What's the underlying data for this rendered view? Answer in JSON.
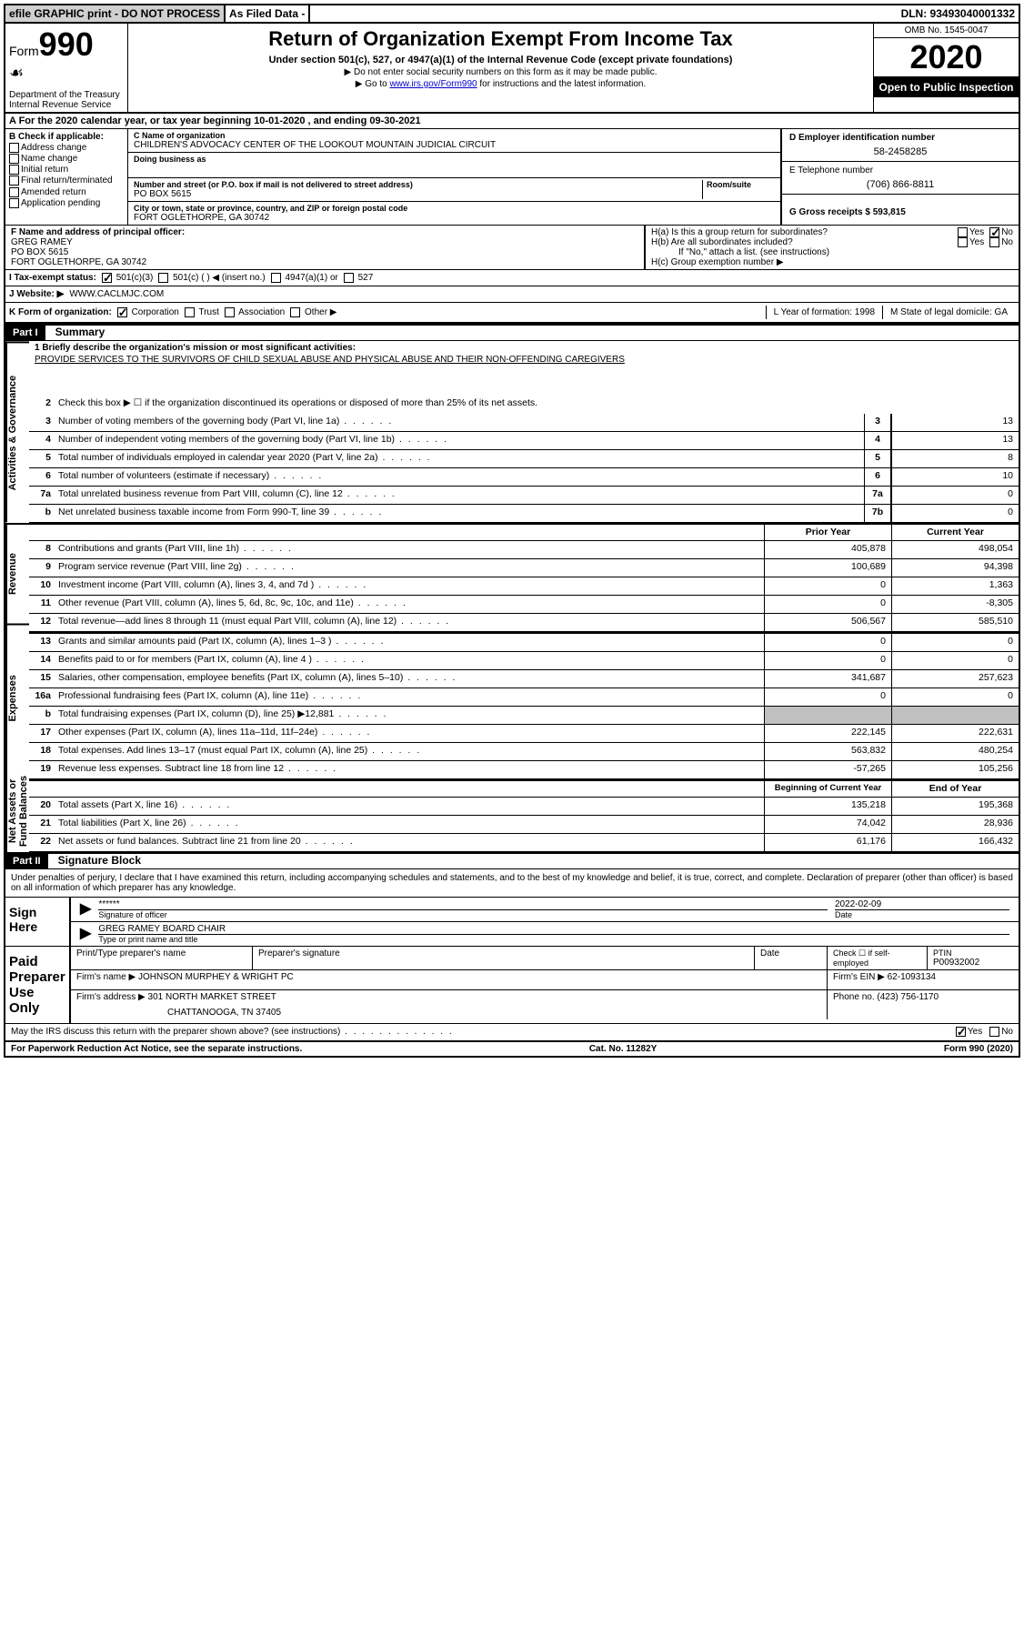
{
  "topbar": {
    "efile": "efile GRAPHIC print - DO NOT PROCESS",
    "asfiled": "As Filed Data -",
    "dln": "DLN: 93493040001332"
  },
  "header": {
    "form_label": "Form",
    "form_num": "990",
    "dept": "Department of the Treasury\nInternal Revenue Service",
    "title": "Return of Organization Exempt From Income Tax",
    "sub": "Under section 501(c), 527, or 4947(a)(1) of the Internal Revenue Code (except private foundations)",
    "note1": "▶ Do not enter social security numbers on this form as it may be made public.",
    "note2_pre": "▶ Go to ",
    "note2_link": "www.irs.gov/Form990",
    "note2_post": " for instructions and the latest information.",
    "omb": "OMB No. 1545-0047",
    "year": "2020",
    "open": "Open to Public Inspection"
  },
  "row_a": "A  For the 2020 calendar year, or tax year beginning 10-01-2020   , and ending 09-30-2021",
  "col_b": {
    "title": "B Check if applicable:",
    "items": [
      "Address change",
      "Name change",
      "Initial return",
      "Final return/terminated",
      "Amended return",
      "Application pending"
    ]
  },
  "col_c": {
    "name_label": "C Name of organization",
    "name": "CHILDREN'S ADVOCACY CENTER OF THE LOOKOUT MOUNTAIN JUDICIAL CIRCUIT",
    "dba_label": "Doing business as",
    "addr_label": "Number and street (or P.O. box if mail is not delivered to street address)",
    "room_label": "Room/suite",
    "addr": "PO BOX 5615",
    "city_label": "City or town, state or province, country, and ZIP or foreign postal code",
    "city": "FORT OGLETHORPE, GA  30742"
  },
  "col_d": {
    "ein_label": "D Employer identification number",
    "ein": "58-2458285",
    "phone_label": "E Telephone number",
    "phone": "(706) 866-8811",
    "gross_label": "G Gross receipts $ 593,815"
  },
  "officer": {
    "f_label": "F  Name and address of principal officer:",
    "name": "GREG RAMEY",
    "addr1": "PO BOX 5615",
    "addr2": "FORT OGLETHORPE, GA  30742",
    "ha": "H(a) Is this a group return for subordinates?",
    "hb": "H(b) Are all subordinates included?",
    "hb_note": "If \"No,\" attach a list. (see instructions)",
    "hc": "H(c) Group exemption number ▶"
  },
  "row_i": {
    "label": "I  Tax-exempt status:",
    "opts": [
      "501(c)(3)",
      "501(c) (  ) ◀ (insert no.)",
      "4947(a)(1) or",
      "527"
    ]
  },
  "row_j": {
    "label": "J  Website: ▶",
    "val": "WWW.CACLMJC.COM"
  },
  "row_k": {
    "label": "K Form of organization:",
    "opts": [
      "Corporation",
      "Trust",
      "Association",
      "Other ▶"
    ],
    "l": "L Year of formation: 1998",
    "m": "M State of legal domicile: GA"
  },
  "part1": {
    "header": "Part I",
    "title": "Summary",
    "mission_label": "1 Briefly describe the organization's mission or most significant activities:",
    "mission": "PROVIDE SERVICES TO THE SURVIVORS OF CHILD SEXUAL ABUSE AND PHYSICAL ABUSE AND THEIR NON-OFFENDING CAREGIVERS",
    "line2": "Check this box ▶ ☐ if the organization discontinued its operations or disposed of more than 25% of its net assets.",
    "tabs": {
      "ag": "Activities & Governance",
      "rev": "Revenue",
      "exp": "Expenses",
      "net": "Net Assets or Fund Balances"
    },
    "rows_ag": [
      {
        "n": "3",
        "t": "Number of voting members of the governing body (Part VI, line 1a)",
        "c": "3",
        "v": "13"
      },
      {
        "n": "4",
        "t": "Number of independent voting members of the governing body (Part VI, line 1b)",
        "c": "4",
        "v": "13"
      },
      {
        "n": "5",
        "t": "Total number of individuals employed in calendar year 2020 (Part V, line 2a)",
        "c": "5",
        "v": "8"
      },
      {
        "n": "6",
        "t": "Total number of volunteers (estimate if necessary)",
        "c": "6",
        "v": "10"
      },
      {
        "n": "7a",
        "t": "Total unrelated business revenue from Part VIII, column (C), line 12",
        "c": "7a",
        "v": "0"
      },
      {
        "n": "b",
        "t": "Net unrelated business taxable income from Form 990-T, line 39",
        "c": "7b",
        "v": "0"
      }
    ],
    "header_py": "Prior Year",
    "header_cy": "Current Year",
    "rows_rev": [
      {
        "n": "8",
        "t": "Contributions and grants (Part VIII, line 1h)",
        "py": "405,878",
        "cy": "498,054"
      },
      {
        "n": "9",
        "t": "Program service revenue (Part VIII, line 2g)",
        "py": "100,689",
        "cy": "94,398"
      },
      {
        "n": "10",
        "t": "Investment income (Part VIII, column (A), lines 3, 4, and 7d )",
        "py": "0",
        "cy": "1,363"
      },
      {
        "n": "11",
        "t": "Other revenue (Part VIII, column (A), lines 5, 6d, 8c, 9c, 10c, and 11e)",
        "py": "0",
        "cy": "-8,305"
      },
      {
        "n": "12",
        "t": "Total revenue—add lines 8 through 11 (must equal Part VIII, column (A), line 12)",
        "py": "506,567",
        "cy": "585,510"
      }
    ],
    "rows_exp": [
      {
        "n": "13",
        "t": "Grants and similar amounts paid (Part IX, column (A), lines 1–3 )",
        "py": "0",
        "cy": "0"
      },
      {
        "n": "14",
        "t": "Benefits paid to or for members (Part IX, column (A), line 4 )",
        "py": "0",
        "cy": "0"
      },
      {
        "n": "15",
        "t": "Salaries, other compensation, employee benefits (Part IX, column (A), lines 5–10)",
        "py": "341,687",
        "cy": "257,623"
      },
      {
        "n": "16a",
        "t": "Professional fundraising fees (Part IX, column (A), line 11e)",
        "py": "0",
        "cy": "0"
      },
      {
        "n": "b",
        "t": "Total fundraising expenses (Part IX, column (D), line 25) ▶12,881",
        "py": "",
        "cy": "",
        "shade": true
      },
      {
        "n": "17",
        "t": "Other expenses (Part IX, column (A), lines 11a–11d, 11f–24e)",
        "py": "222,145",
        "cy": "222,631"
      },
      {
        "n": "18",
        "t": "Total expenses. Add lines 13–17 (must equal Part IX, column (A), line 25)",
        "py": "563,832",
        "cy": "480,254"
      },
      {
        "n": "19",
        "t": "Revenue less expenses. Subtract line 18 from line 12",
        "py": "-57,265",
        "cy": "105,256"
      }
    ],
    "header_bcy": "Beginning of Current Year",
    "header_eoy": "End of Year",
    "rows_net": [
      {
        "n": "20",
        "t": "Total assets (Part X, line 16)",
        "py": "135,218",
        "cy": "195,368"
      },
      {
        "n": "21",
        "t": "Total liabilities (Part X, line 26)",
        "py": "74,042",
        "cy": "28,936"
      },
      {
        "n": "22",
        "t": "Net assets or fund balances. Subtract line 21 from line 20",
        "py": "61,176",
        "cy": "166,432"
      }
    ]
  },
  "part2": {
    "header": "Part II",
    "title": "Signature Block",
    "intro": "Under penalties of perjury, I declare that I have examined this return, including accompanying schedules and statements, and to the best of my knowledge and belief, it is true, correct, and complete. Declaration of preparer (other than officer) is based on all information of which preparer has any knowledge.",
    "sign_here": "Sign Here",
    "sig_stars": "******",
    "sig_officer_label": "Signature of officer",
    "sig_date": "2022-02-09",
    "date_label": "Date",
    "officer_name": "GREG RAMEY BOARD CHAIR",
    "officer_name_label": "Type or print name and title",
    "paid": "Paid Preparer Use Only",
    "prep_name_label": "Print/Type preparer's name",
    "prep_sig_label": "Preparer's signature",
    "check_self": "Check ☐ if self-employed",
    "ptin_label": "PTIN",
    "ptin": "P00932002",
    "firm_name_label": "Firm's name    ▶",
    "firm_name": "JOHNSON MURPHEY & WRIGHT PC",
    "firm_ein_label": "Firm's EIN ▶",
    "firm_ein": "62-1093134",
    "firm_addr_label": "Firm's address ▶",
    "firm_addr1": "301 NORTH MARKET STREET",
    "firm_addr2": "CHATTANOOGA, TN 37405",
    "firm_phone_label": "Phone no.",
    "firm_phone": "(423) 756-1170",
    "discuss": "May the IRS discuss this return with the preparer shown above? (see instructions)"
  },
  "footer": {
    "left": "For Paperwork Reduction Act Notice, see the separate instructions.",
    "mid": "Cat. No. 11282Y",
    "right": "Form 990 (2020)"
  }
}
